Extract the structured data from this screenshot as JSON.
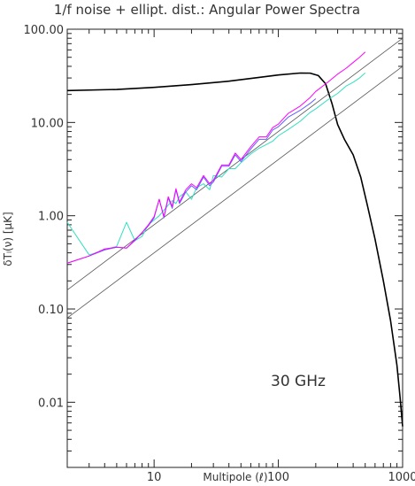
{
  "chart_data": {
    "type": "line",
    "title": "1/f noise + ellipt. dist.: Angular Power Spectra",
    "xlabel": "Multipole (ℓ)",
    "ylabel": "δTₗ(ν) [μK]",
    "xscale": "log",
    "yscale": "log",
    "xlim": [
      2,
      1000
    ],
    "ylim": [
      0.002,
      100
    ],
    "grid": false,
    "legend": "none",
    "x_ticks": [
      {
        "value": 10,
        "label": "10"
      },
      {
        "value": 100,
        "label": "100"
      },
      {
        "value": 1000,
        "label": "1000"
      }
    ],
    "y_ticks": [
      {
        "value": 100,
        "label": "100.00"
      },
      {
        "value": 10,
        "label": "10.00"
      },
      {
        "value": 1,
        "label": "1.00"
      },
      {
        "value": 0.1,
        "label": "0.10"
      },
      {
        "value": 0.01,
        "label": "0.01"
      }
    ],
    "annotation": "30 GHz",
    "series": [
      {
        "color": "#000000",
        "width": 1.6,
        "x": [
          2,
          5,
          10,
          20,
          40,
          70,
          100,
          150,
          180,
          210,
          240,
          270,
          300,
          340,
          400,
          460,
          520,
          600,
          700,
          800,
          900,
          950,
          1000
        ],
        "y": [
          22,
          22.6,
          23.8,
          25.5,
          27.7,
          30.4,
          32.3,
          33.9,
          33.8,
          31.8,
          26,
          16,
          9.5,
          6.6,
          4.5,
          2.6,
          1.3,
          0.56,
          0.2,
          0.075,
          0.025,
          0.012,
          0.0055
        ]
      },
      {
        "color": "#555555",
        "width": 0.8,
        "x": [
          2,
          1000
        ],
        "y": [
          0.16,
          80
        ]
      },
      {
        "color": "#555555",
        "width": 0.8,
        "x": [
          2,
          1000
        ],
        "y": [
          0.08,
          40
        ]
      },
      {
        "color": "#30e0c0",
        "width": 1,
        "x": [
          2,
          3,
          4,
          5,
          6,
          7,
          8,
          9,
          10,
          11,
          12,
          13,
          14,
          15,
          16,
          18,
          20,
          22,
          25,
          28,
          30,
          35,
          40,
          45,
          50,
          60,
          70,
          80,
          90,
          100,
          120,
          150,
          180,
          200,
          250,
          300,
          350,
          400,
          450,
          500
        ],
        "y": [
          0.85,
          0.38,
          0.43,
          0.47,
          0.85,
          0.54,
          0.6,
          0.8,
          0.9,
          1.0,
          1.15,
          1.3,
          1.45,
          1.35,
          1.6,
          1.8,
          1.5,
          2.0,
          2.2,
          1.9,
          2.7,
          2.6,
          3.2,
          3.2,
          3.7,
          4.6,
          5.3,
          5.8,
          6.3,
          7.2,
          8.4,
          10.3,
          12.8,
          14,
          17.5,
          20.5,
          24.5,
          27,
          30,
          34
        ]
      },
      {
        "color": "#6060ff",
        "width": 1,
        "x": [
          2,
          3,
          4,
          5,
          6,
          7,
          8,
          9,
          10,
          11,
          12,
          13,
          14,
          15,
          16,
          18,
          20,
          22,
          25,
          28,
          30,
          35,
          40,
          45,
          50,
          60,
          70,
          80,
          90,
          100,
          120,
          150,
          180,
          200
        ],
        "y": [
          0.31,
          0.37,
          0.43,
          0.46,
          0.45,
          0.54,
          0.66,
          0.78,
          0.95,
          1.5,
          0.95,
          1.55,
          1.2,
          1.9,
          1.35,
          1.8,
          2.1,
          1.9,
          2.6,
          2.1,
          2.3,
          3.4,
          3.4,
          4.5,
          3.8,
          5.2,
          6.6,
          6.6,
          8.3,
          9.0,
          11.4,
          13.5,
          16,
          18
        ]
      },
      {
        "color": "#ff00ff",
        "width": 1,
        "x": [
          2,
          3,
          4,
          5,
          6,
          7,
          8,
          9,
          10,
          11,
          12,
          13,
          14,
          15,
          16,
          18,
          20,
          22,
          25,
          28,
          30,
          35,
          40,
          45,
          50,
          60,
          70,
          80,
          90,
          100,
          120,
          150,
          180,
          200,
          250,
          300,
          350,
          400,
          450,
          500
        ],
        "y": [
          0.31,
          0.37,
          0.44,
          0.46,
          0.45,
          0.55,
          0.66,
          0.8,
          0.98,
          1.5,
          0.98,
          1.6,
          1.25,
          1.95,
          1.4,
          1.9,
          2.2,
          2.0,
          2.7,
          2.2,
          2.4,
          3.5,
          3.5,
          4.7,
          4.0,
          5.5,
          7.0,
          7.0,
          8.8,
          9.6,
          12.5,
          15,
          18.5,
          21.5,
          27,
          33,
          38,
          44,
          50,
          57
        ]
      }
    ]
  }
}
